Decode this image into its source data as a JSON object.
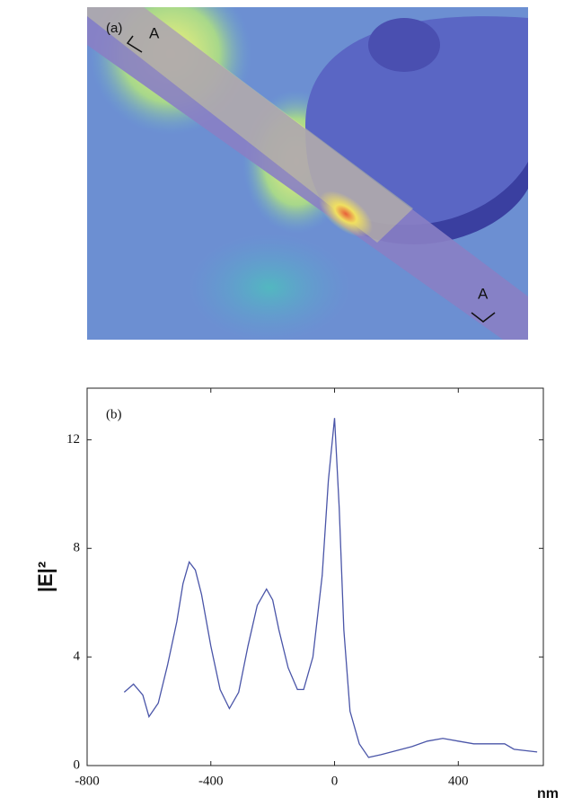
{
  "panel_a": {
    "label": "(a)",
    "markers": [
      "A",
      "A"
    ]
  },
  "chart_data": {
    "type": "line",
    "panel_label": "(b)",
    "x_label": "nm",
    "y_label": "|E|²",
    "x": [
      -680,
      -650,
      -620,
      -600,
      -570,
      -540,
      -510,
      -490,
      -470,
      -450,
      -430,
      -400,
      -370,
      -340,
      -310,
      -280,
      -250,
      -220,
      -200,
      -180,
      -150,
      -120,
      -100,
      -70,
      -40,
      -20,
      0,
      15,
      30,
      50,
      80,
      110,
      150,
      200,
      250,
      300,
      350,
      400,
      450,
      500,
      550,
      580,
      655
    ],
    "series": [
      {
        "color": "#4a55a8",
        "values": [
          2.7,
          3.0,
          2.6,
          1.8,
          2.3,
          3.7,
          5.3,
          6.7,
          7.5,
          7.2,
          6.3,
          4.4,
          2.8,
          2.1,
          2.7,
          4.4,
          5.9,
          6.5,
          6.1,
          5.0,
          3.6,
          2.8,
          2.8,
          4.0,
          7.0,
          10.5,
          12.8,
          9.5,
          5.0,
          2.0,
          0.8,
          0.3,
          0.4,
          0.55,
          0.7,
          0.9,
          1.0,
          0.9,
          0.8,
          0.8,
          0.8,
          0.6,
          0.5
        ]
      }
    ],
    "xlim": [
      -800,
      675
    ],
    "ylim": [
      0,
      13.9
    ],
    "xticks": [
      -800,
      -400,
      0,
      400
    ],
    "yticks": [
      0,
      4,
      8,
      12
    ]
  }
}
